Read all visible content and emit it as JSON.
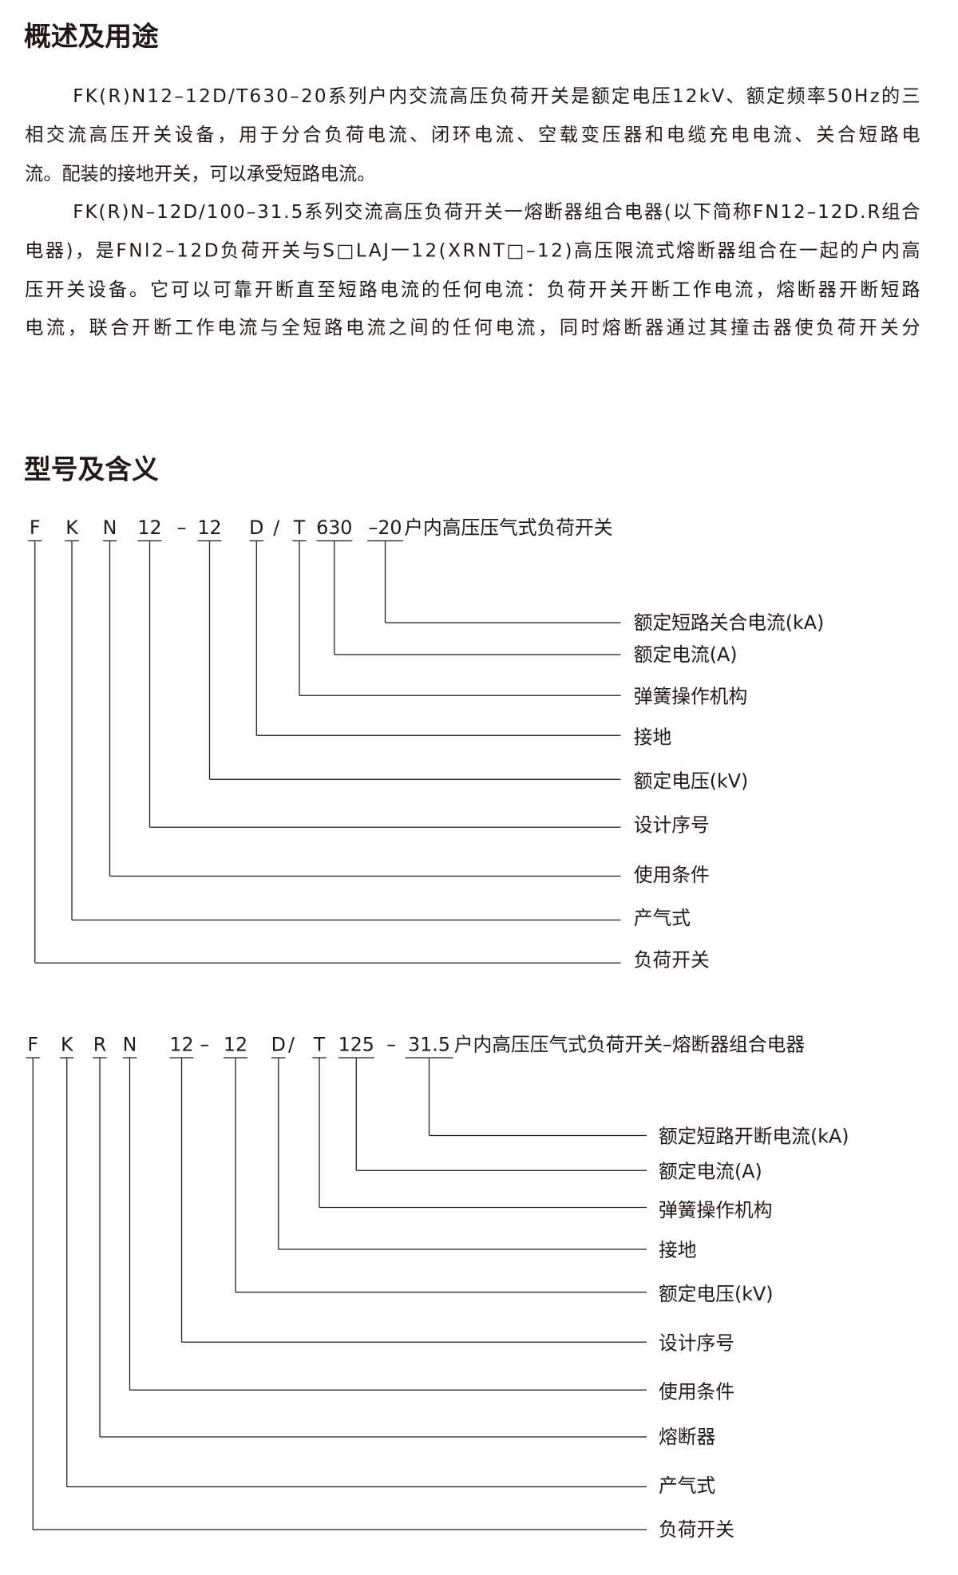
{
  "overview": {
    "title": "概述及用途",
    "paragraphs": [
      [
        "FK(R)N12–12D/T630–20系列户内交流高压负荷开关是额定电压12kV、额定频率50Hz的三",
        "相交流高压开关设备，用于分合负荷电流、闭环电流、空载变压器和电缆充电电流、关合短路电",
        "流。配装的接地开关，可以承受短路电流。"
      ],
      [
        "FK(R)N–12D/100–31.5系列交流高压负荷开关一熔断器组合电器(以下简称FN12–12D.R组合",
        "电器)，是FNl2–12D负荷开关与S□LAJ一12(XRNT□–12)高压限流式熔断器组合在一起的户内高",
        "压开关设备。它可以可靠开断直至短路电流的任何电流：负荷开关开断工作电流，熔断器开断短路",
        "电流，联合开断工作电流与全短路电流之间的任何电流，同时熔断器通过其撞击器使负荷开关分"
      ]
    ]
  },
  "model": {
    "title": "型号及含义",
    "diagrams": [
      {
        "code": [
          "F",
          "K",
          "N",
          "12",
          "–",
          "12",
          "D",
          "/",
          "T",
          "630",
          "–20"
        ],
        "description": "户内高压压气式负荷开关",
        "meanings": [
          "额定短路关合电流(kA)",
          "额定电流(A)",
          "弹簧操作机构",
          "接地",
          "额定电压(kV)",
          "设计序号",
          "使用条件",
          "产气式",
          "负荷开关"
        ]
      },
      {
        "code": [
          "F",
          "K",
          "R",
          "N",
          "12",
          "–",
          "12",
          "D",
          "/",
          "T",
          "125",
          "–",
          "31.5"
        ],
        "description": "户内高压压气式负荷开关–熔断器组合电器",
        "meanings": [
          "额定短路开断电流(kA)",
          "额定电流(A)",
          "弹簧操作机构",
          "接地",
          "额定电压(kV)",
          "设计序号",
          "使用条件",
          "熔断器",
          "产气式",
          "负荷开关"
        ]
      }
    ]
  }
}
